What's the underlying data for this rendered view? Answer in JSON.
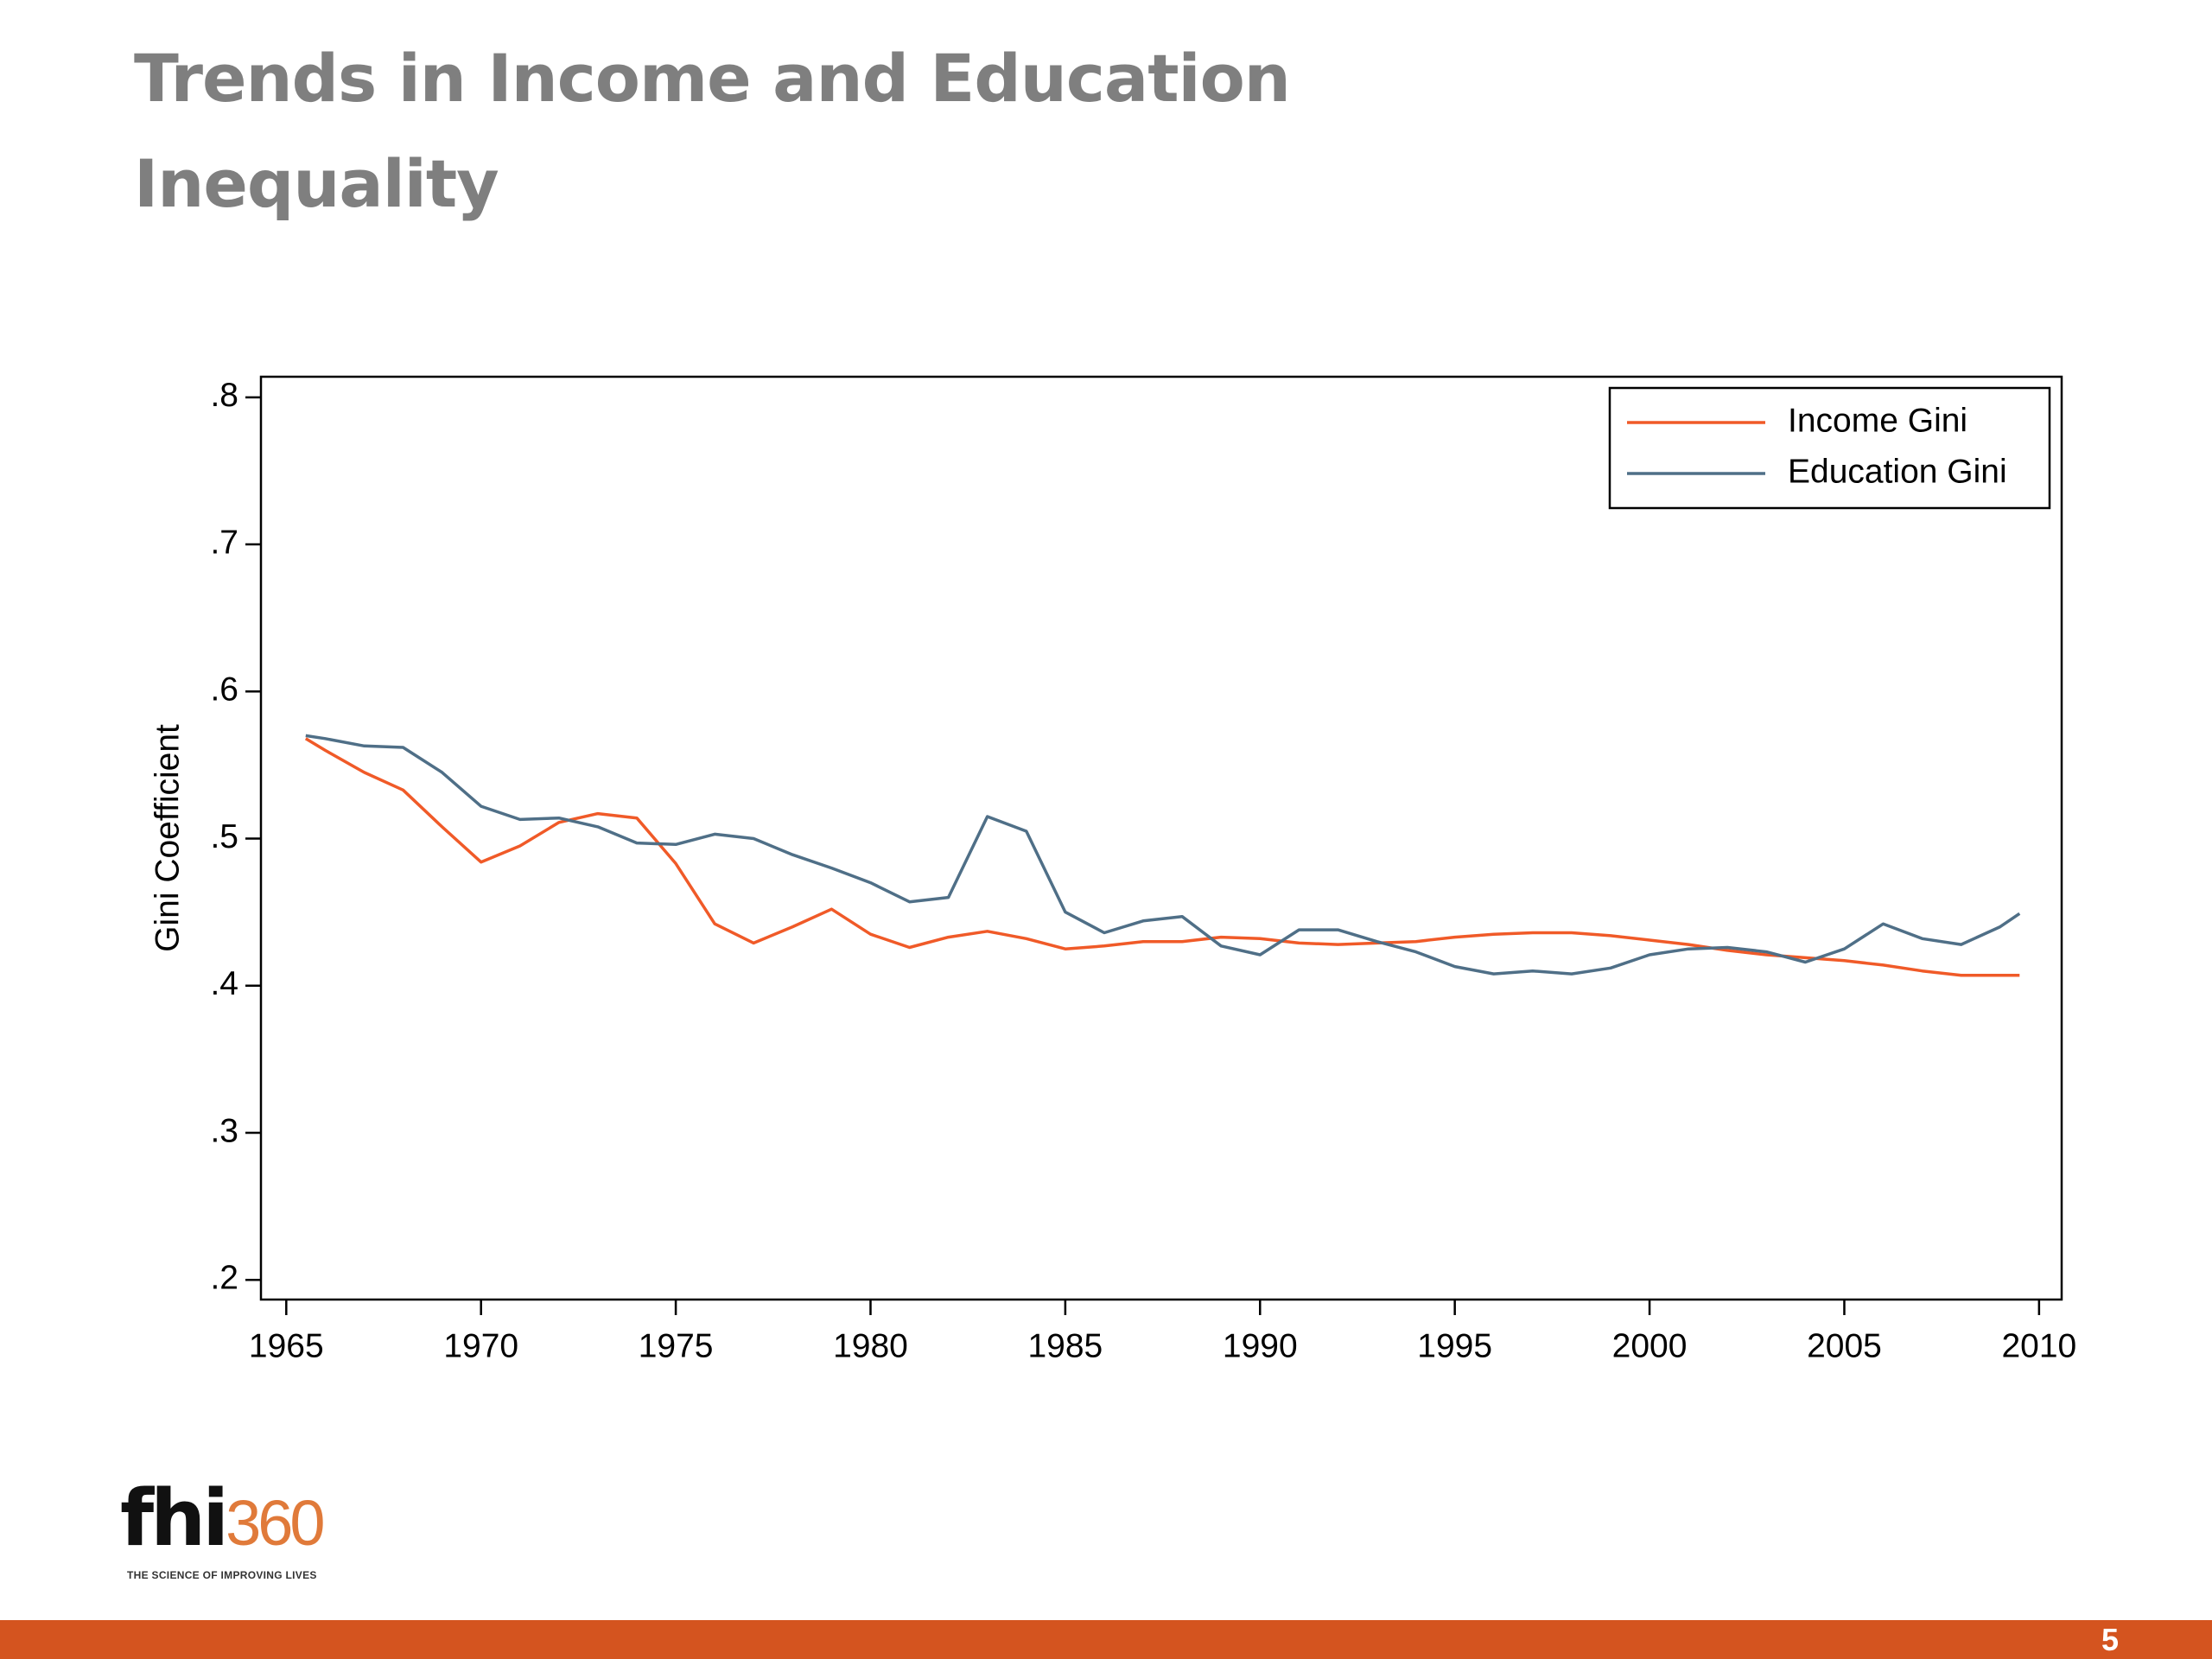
{
  "title": "Trends in Income and Education Inequality",
  "chart_data": {
    "type": "line",
    "y_label": "Gini Coefficient",
    "x": [
      1965.5,
      1966,
      1967,
      1968,
      1969,
      1970,
      1971,
      1972,
      1973,
      1974,
      1975,
      1976,
      1977,
      1978,
      1979,
      1980,
      1981,
      1982,
      1983,
      1984,
      1985,
      1986,
      1987,
      1988,
      1989,
      1990,
      1991,
      1992,
      1993,
      1994,
      1995,
      1996,
      1997,
      1998,
      1999,
      2000,
      2001,
      2002,
      2003,
      2004,
      2005,
      2006,
      2007,
      2008,
      2009,
      2009.5
    ],
    "series": [
      {
        "name": "Income Gini",
        "color": "#f05a28",
        "values": [
          0.568,
          0.56,
          0.545,
          0.533,
          0.508,
          0.484,
          0.495,
          0.511,
          0.517,
          0.514,
          0.483,
          0.442,
          0.429,
          0.44,
          0.452,
          0.435,
          0.426,
          0.433,
          0.437,
          0.432,
          0.425,
          0.427,
          0.43,
          0.43,
          0.433,
          0.432,
          0.429,
          0.428,
          0.429,
          0.43,
          0.433,
          0.435,
          0.436,
          0.436,
          0.434,
          0.431,
          0.428,
          0.424,
          0.421,
          0.419,
          0.417,
          0.414,
          0.41,
          0.407,
          0.407,
          0.407
        ]
      },
      {
        "name": "Education Gini",
        "color": "#4f6f87",
        "values": [
          0.57,
          0.568,
          0.563,
          0.562,
          0.545,
          0.522,
          0.513,
          0.514,
          0.508,
          0.497,
          0.496,
          0.503,
          0.5,
          0.489,
          0.48,
          0.47,
          0.457,
          0.46,
          0.515,
          0.505,
          0.45,
          0.436,
          0.444,
          0.447,
          0.427,
          0.421,
          0.438,
          0.438,
          0.43,
          0.423,
          0.413,
          0.408,
          0.41,
          0.408,
          0.412,
          0.421,
          0.425,
          0.426,
          0.423,
          0.416,
          0.425,
          0.442,
          0.432,
          0.428,
          0.44,
          0.449
        ]
      }
    ],
    "xlim": [
      1964.35,
      2010.58
    ],
    "xticks": [
      1965,
      1970,
      1975,
      1980,
      1985,
      1990,
      1995,
      2000,
      2005,
      2010
    ],
    "ylim": [
      0.1866,
      0.814
    ],
    "yticks": [
      {
        "value": 0.2,
        "label": ".2"
      },
      {
        "value": 0.3,
        "label": ".3"
      },
      {
        "value": 0.4,
        "label": ".4"
      },
      {
        "value": 0.5,
        "label": ".5"
      },
      {
        "value": 0.6,
        "label": ".6"
      },
      {
        "value": 0.7,
        "label": ".7"
      },
      {
        "value": 0.8,
        "label": ".8"
      }
    ],
    "grid": false,
    "legend": "top-right"
  },
  "logo": {
    "name": "fhi",
    "number": "360",
    "tagline": "THE SCIENCE OF IMPROVING LIVES"
  },
  "page_number": "5"
}
